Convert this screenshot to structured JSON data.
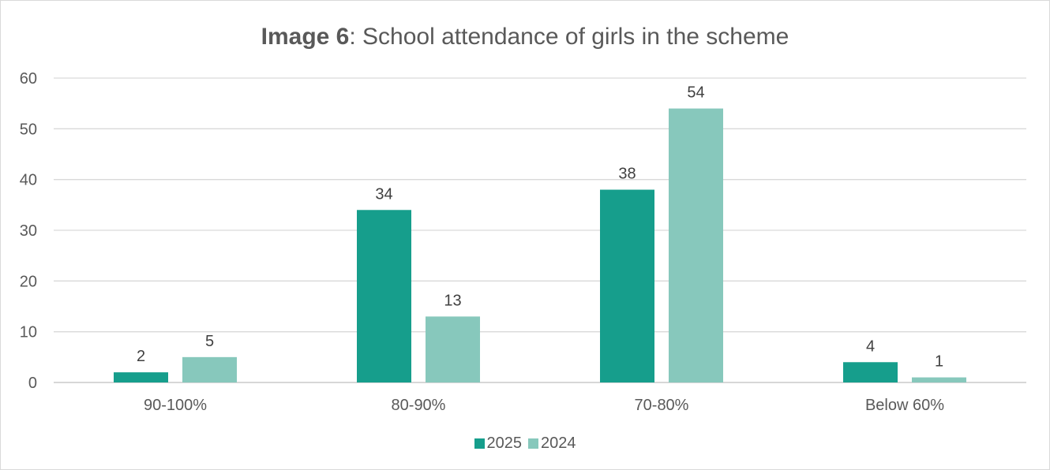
{
  "chart_data": {
    "type": "bar",
    "title_bold": "Image 6",
    "title_rest": ": School attendance of girls in the scheme",
    "categories": [
      "90-100%",
      "80-90%",
      "70-80%",
      "Below 60%"
    ],
    "series": [
      {
        "name": "2025",
        "values": [
          2,
          34,
          38,
          4
        ],
        "color": "#169e8c"
      },
      {
        "name": "2024",
        "values": [
          5,
          13,
          54,
          1
        ],
        "color": "#87c8bc"
      }
    ],
    "ylim": [
      0,
      60
    ],
    "yticks": [
      0,
      10,
      20,
      30,
      40,
      50,
      60
    ],
    "grid": true,
    "legend_position": "bottom",
    "xlabel": "",
    "ylabel": ""
  }
}
